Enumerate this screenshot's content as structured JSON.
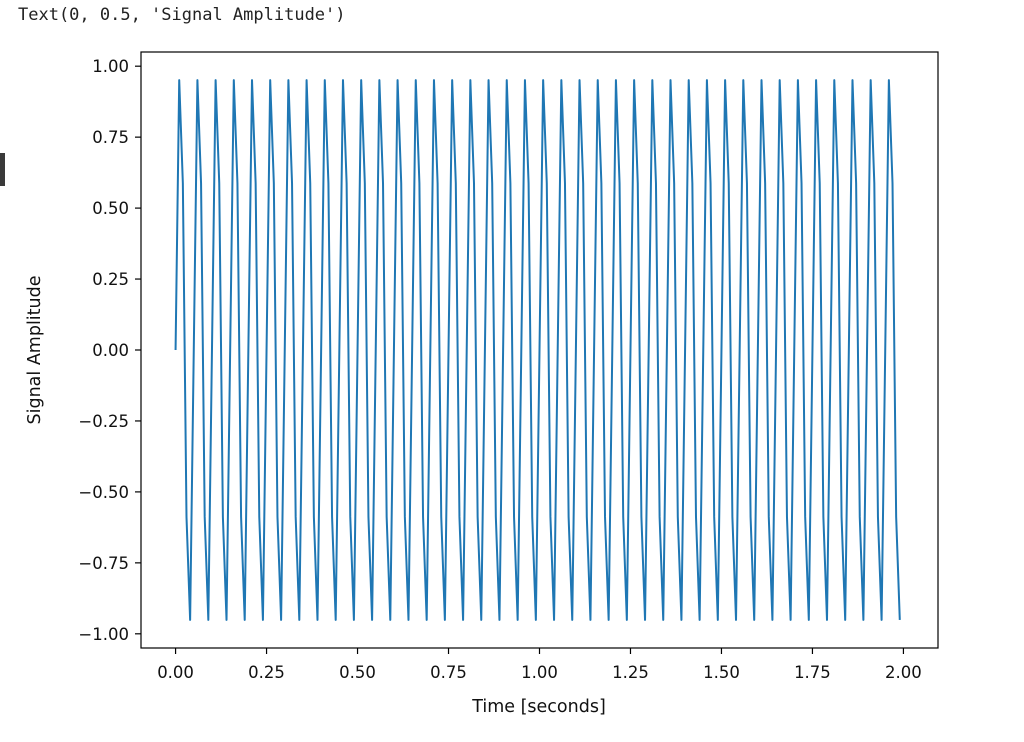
{
  "output_text": "Text(0, 0.5, 'Signal Amplitude')",
  "chart_data": {
    "type": "line",
    "title": "",
    "xlabel": "Time [seconds]",
    "ylabel": "Signal Amplitude",
    "xlim": [
      -0.095,
      2.095
    ],
    "ylim": [
      -1.05,
      1.05
    ],
    "xticks": [
      0.0,
      0.25,
      0.5,
      0.75,
      1.0,
      1.25,
      1.5,
      1.75,
      2.0
    ],
    "xtick_labels": [
      "0.00",
      "0.25",
      "0.50",
      "0.75",
      "1.00",
      "1.25",
      "1.50",
      "1.75",
      "2.00"
    ],
    "yticks": [
      1.0,
      0.75,
      0.5,
      0.25,
      0.0,
      -0.25,
      -0.5,
      -0.75,
      -1.0
    ],
    "ytick_labels": [
      "1.00",
      "0.75",
      "0.50",
      "0.25",
      "0.00",
      "−0.25",
      "−0.50",
      "−0.75",
      "−1.00"
    ],
    "grid": false,
    "line_color": "#1f77b4",
    "series": [
      {
        "signal": "sine",
        "frequency_hz": 20,
        "amplitude": 1.0,
        "x_start": 0.0,
        "x_end": 1.99,
        "sample_interval": 0.01
      }
    ]
  }
}
